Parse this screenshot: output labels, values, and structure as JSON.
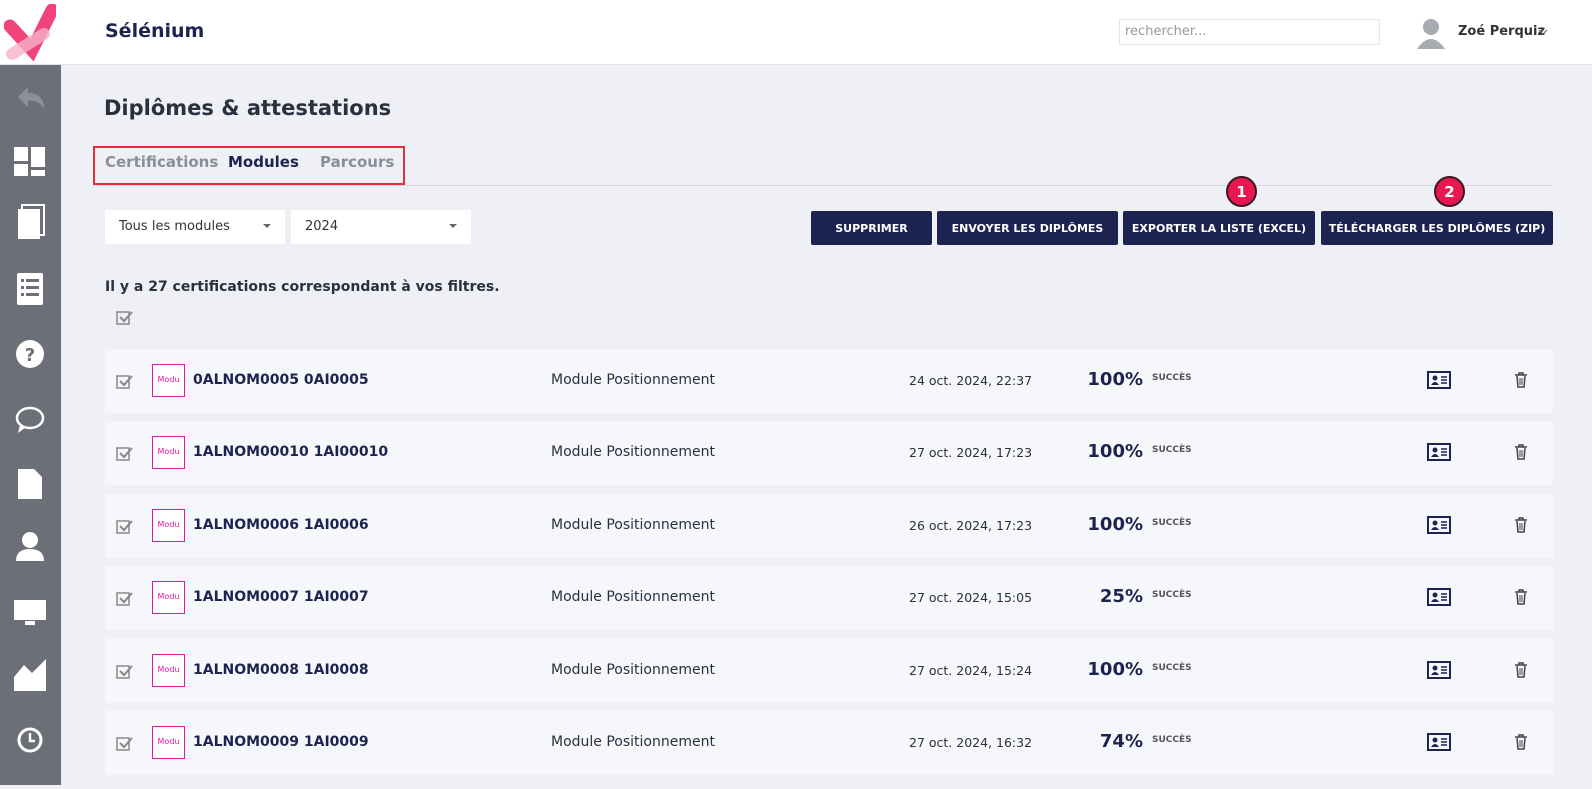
{
  "header": {
    "app_name": "Sélénium",
    "search_placeholder": "rechercher...",
    "user_name": "Zoé Perquiz"
  },
  "page": {
    "title": "Diplômes & attestations",
    "tabs": [
      "Certifications",
      "Modules",
      "Parcours"
    ],
    "filters": [
      "Tous les modules",
      "2024"
    ],
    "buttons": [
      "SUPPRIMER",
      "ENVOYER LES DIPLÔMES",
      "EXPORTER LA LISTE (EXCEL)",
      "TÉLÉCHARGER LES DIPLÔMES (ZIP)"
    ],
    "callouts": [
      "1",
      "2"
    ],
    "summary": "Il y a 27 certifications correspondant à vos filtres."
  },
  "rows": [
    {
      "thumb": "Modu",
      "name": "0ALNOM0005 0AI0005",
      "module": "Module Positionnement",
      "date": "24 oct. 2024, 22:37",
      "score": "100%",
      "status": "SUCCÈS"
    },
    {
      "thumb": "Modu",
      "name": "1ALNOM00010 1AI00010",
      "module": "Module Positionnement",
      "date": "27 oct. 2024, 17:23",
      "score": "100%",
      "status": "SUCCÈS"
    },
    {
      "thumb": "Modu",
      "name": "1ALNOM0006 1AI0006",
      "module": "Module Positionnement",
      "date": "26 oct. 2024, 17:23",
      "score": "100%",
      "status": "SUCCÈS"
    },
    {
      "thumb": "Modu",
      "name": "1ALNOM0007 1AI0007",
      "module": "Module Positionnement",
      "date": "27 oct. 2024, 15:05",
      "score": "25%",
      "status": "SUCCÈS"
    },
    {
      "thumb": "Modu",
      "name": "1ALNOM0008 1AI0008",
      "module": "Module Positionnement",
      "date": "27 oct. 2024, 15:24",
      "score": "100%",
      "status": "SUCCÈS"
    },
    {
      "thumb": "Modu",
      "name": "1ALNOM0009 1AI0009",
      "module": "Module Positionnement",
      "date": "27 oct. 2024, 16:32",
      "score": "74%",
      "status": "SUCCÈS"
    }
  ]
}
